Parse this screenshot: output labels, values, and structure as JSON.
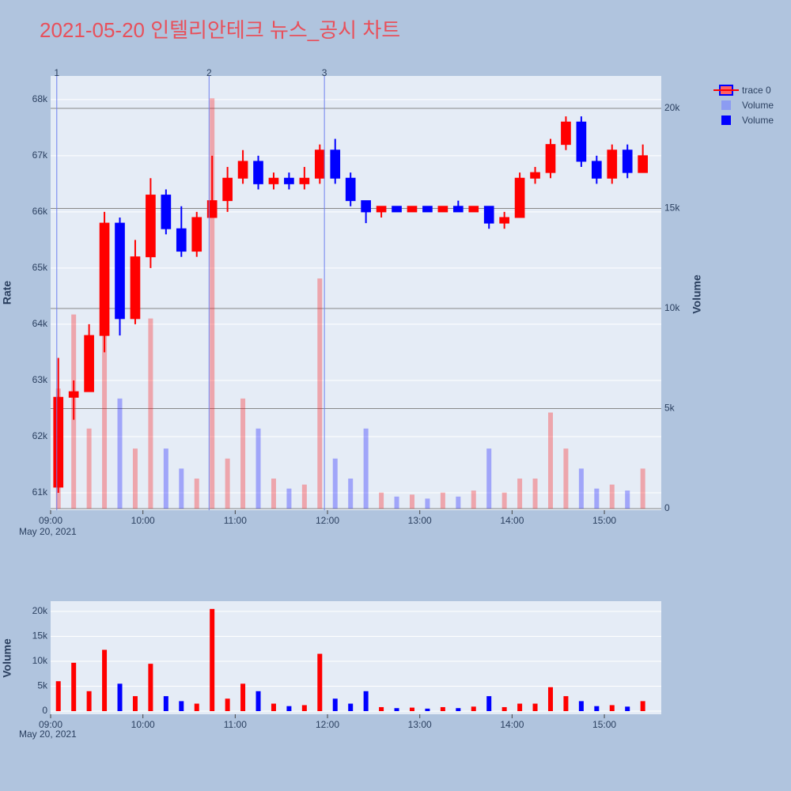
{
  "chart_data": [
    {
      "type": "candlestick",
      "title": "2021-05-20 인텔리안테크 뉴스_공시 차트",
      "name": "trace 0",
      "x": [
        "09:00",
        "09:10",
        "09:20",
        "09:30",
        "09:40",
        "09:50",
        "10:00",
        "10:10",
        "10:20",
        "10:30",
        "10:40",
        "10:50",
        "11:00",
        "11:10",
        "11:20",
        "11:30",
        "11:40",
        "11:50",
        "12:00",
        "12:10",
        "12:20",
        "12:30",
        "12:40",
        "12:50",
        "13:00",
        "13:10",
        "13:20",
        "13:30",
        "13:40",
        "13:50",
        "14:00",
        "14:10",
        "14:20",
        "14:30",
        "14:40",
        "14:50",
        "15:00",
        "15:10",
        "15:20"
      ],
      "open": [
        61100,
        62700,
        62800,
        63800,
        65800,
        64100,
        65200,
        66300,
        65700,
        65300,
        65900,
        66200,
        66600,
        66900,
        66500,
        66600,
        66500,
        66600,
        67100,
        66600,
        66200,
        66000,
        66100,
        66000,
        66100,
        66000,
        66100,
        66000,
        66100,
        65800,
        65900,
        66600,
        66700,
        67200,
        67600,
        66900,
        66600,
        67100,
        66700
      ],
      "high": [
        63400,
        63000,
        64000,
        66000,
        65900,
        65500,
        66600,
        66400,
        66100,
        66000,
        67000,
        66800,
        67100,
        67000,
        66700,
        66700,
        66800,
        67200,
        67300,
        66700,
        66200,
        66100,
        66100,
        66100,
        66100,
        66100,
        66200,
        66100,
        66100,
        66000,
        66700,
        66800,
        67300,
        67700,
        67700,
        67000,
        67200,
        67200,
        67200
      ],
      "low": [
        61000,
        62300,
        62800,
        63500,
        63800,
        64000,
        65000,
        65600,
        65200,
        65200,
        65900,
        66000,
        66500,
        66400,
        66400,
        66400,
        66400,
        66500,
        66500,
        66100,
        65800,
        65900,
        66000,
        66000,
        66000,
        66000,
        66000,
        66000,
        65700,
        65700,
        65900,
        66500,
        66600,
        67100,
        66800,
        66500,
        66500,
        66600,
        66700
      ],
      "close": [
        62700,
        62800,
        63800,
        65800,
        64100,
        65200,
        66300,
        65700,
        65300,
        65900,
        66200,
        66600,
        66900,
        66500,
        66600,
        66500,
        66600,
        67100,
        66600,
        66200,
        66000,
        66100,
        66000,
        66100,
        66000,
        66100,
        66000,
        66100,
        65800,
        65900,
        66600,
        66700,
        67200,
        67600,
        66900,
        66600,
        67100,
        66700,
        67000
      ],
      "increasing_color": "#ff0000",
      "decreasing_color": "#0000ff",
      "series": [
        {
          "name": "Volume",
          "color": "#8c9cf2",
          "axis": "y2",
          "values": [
            6000,
            9700,
            4000,
            12300,
            5500,
            3000,
            9500,
            3000,
            2000,
            1500,
            20500,
            2500,
            5500,
            4000,
            1500,
            1000,
            1200,
            11500,
            2500,
            1500,
            4000,
            800,
            600,
            700,
            500,
            800,
            600,
            900,
            3000,
            800,
            1500,
            1500,
            4800,
            3000,
            2000,
            1000,
            1200,
            900,
            2000
          ]
        }
      ],
      "ylabel": "Rate",
      "y2label": "Volume",
      "xlim": [
        "09:00",
        "15:37"
      ],
      "xticks": [
        "09:00",
        "10:00",
        "11:00",
        "12:00",
        "13:00",
        "14:00",
        "15:00"
      ],
      "x_date_label": "May 20, 2021",
      "ylim": [
        60690,
        68420
      ],
      "yticks": [
        {
          "value": 61000,
          "label": "61k"
        },
        {
          "value": 62000,
          "label": "62k"
        },
        {
          "value": 63000,
          "label": "63k"
        },
        {
          "value": 64000,
          "label": "64k"
        },
        {
          "value": 65000,
          "label": "65k"
        },
        {
          "value": 66000,
          "label": "66k"
        },
        {
          "value": 67000,
          "label": "67k"
        },
        {
          "value": 68000,
          "label": "68k"
        }
      ],
      "y2lim": [
        -80,
        21620
      ],
      "y2ticks": [
        0,
        {
          "value": 5000,
          "label": "5k"
        },
        {
          "value": 10000,
          "label": "10k"
        },
        {
          "value": 15000,
          "label": "15k"
        },
        {
          "value": 20000,
          "label": "20k"
        }
      ],
      "annotations": [
        {
          "x": "09:04",
          "text": "1"
        },
        {
          "x": "10:43",
          "text": "2"
        },
        {
          "x": "11:58",
          "text": "3"
        }
      ]
    },
    {
      "type": "bar",
      "ylabel": "Volume",
      "x": [
        "09:00",
        "09:10",
        "09:20",
        "09:30",
        "09:40",
        "09:50",
        "10:00",
        "10:10",
        "10:20",
        "10:30",
        "10:40",
        "10:50",
        "11:00",
        "11:10",
        "11:20",
        "11:30",
        "11:40",
        "11:50",
        "12:00",
        "12:10",
        "12:20",
        "12:30",
        "12:40",
        "12:50",
        "13:00",
        "13:10",
        "13:20",
        "13:30",
        "13:40",
        "13:50",
        "14:00",
        "14:10",
        "14:20",
        "14:30",
        "14:40",
        "14:50",
        "15:00",
        "15:10",
        "15:20"
      ],
      "series": [
        {
          "name": "Volume",
          "color": "#0000ff",
          "values": [
            6000,
            9700,
            4000,
            12300,
            5500,
            3000,
            9500,
            3000,
            2000,
            1500,
            20500,
            2500,
            5500,
            4000,
            1500,
            1000,
            1200,
            11500,
            2500,
            1500,
            4000,
            800,
            600,
            700,
            500,
            800,
            600,
            900,
            3000,
            800,
            1500,
            1500,
            4800,
            3000,
            2000,
            1000,
            1200,
            900,
            2000
          ]
        }
      ],
      "xlim": [
        "09:00",
        "15:37"
      ],
      "xticks": [
        "09:00",
        "10:00",
        "11:00",
        "12:00",
        "13:00",
        "14:00",
        "15:00"
      ],
      "x_date_label": "May 20, 2021",
      "ylim": [
        -635,
        22060
      ],
      "yticks": [
        0,
        {
          "value": 5000,
          "label": "5k"
        },
        {
          "value": 10000,
          "label": "10k"
        },
        {
          "value": 15000,
          "label": "15k"
        },
        {
          "value": 20000,
          "label": "20k"
        }
      ]
    }
  ]
}
